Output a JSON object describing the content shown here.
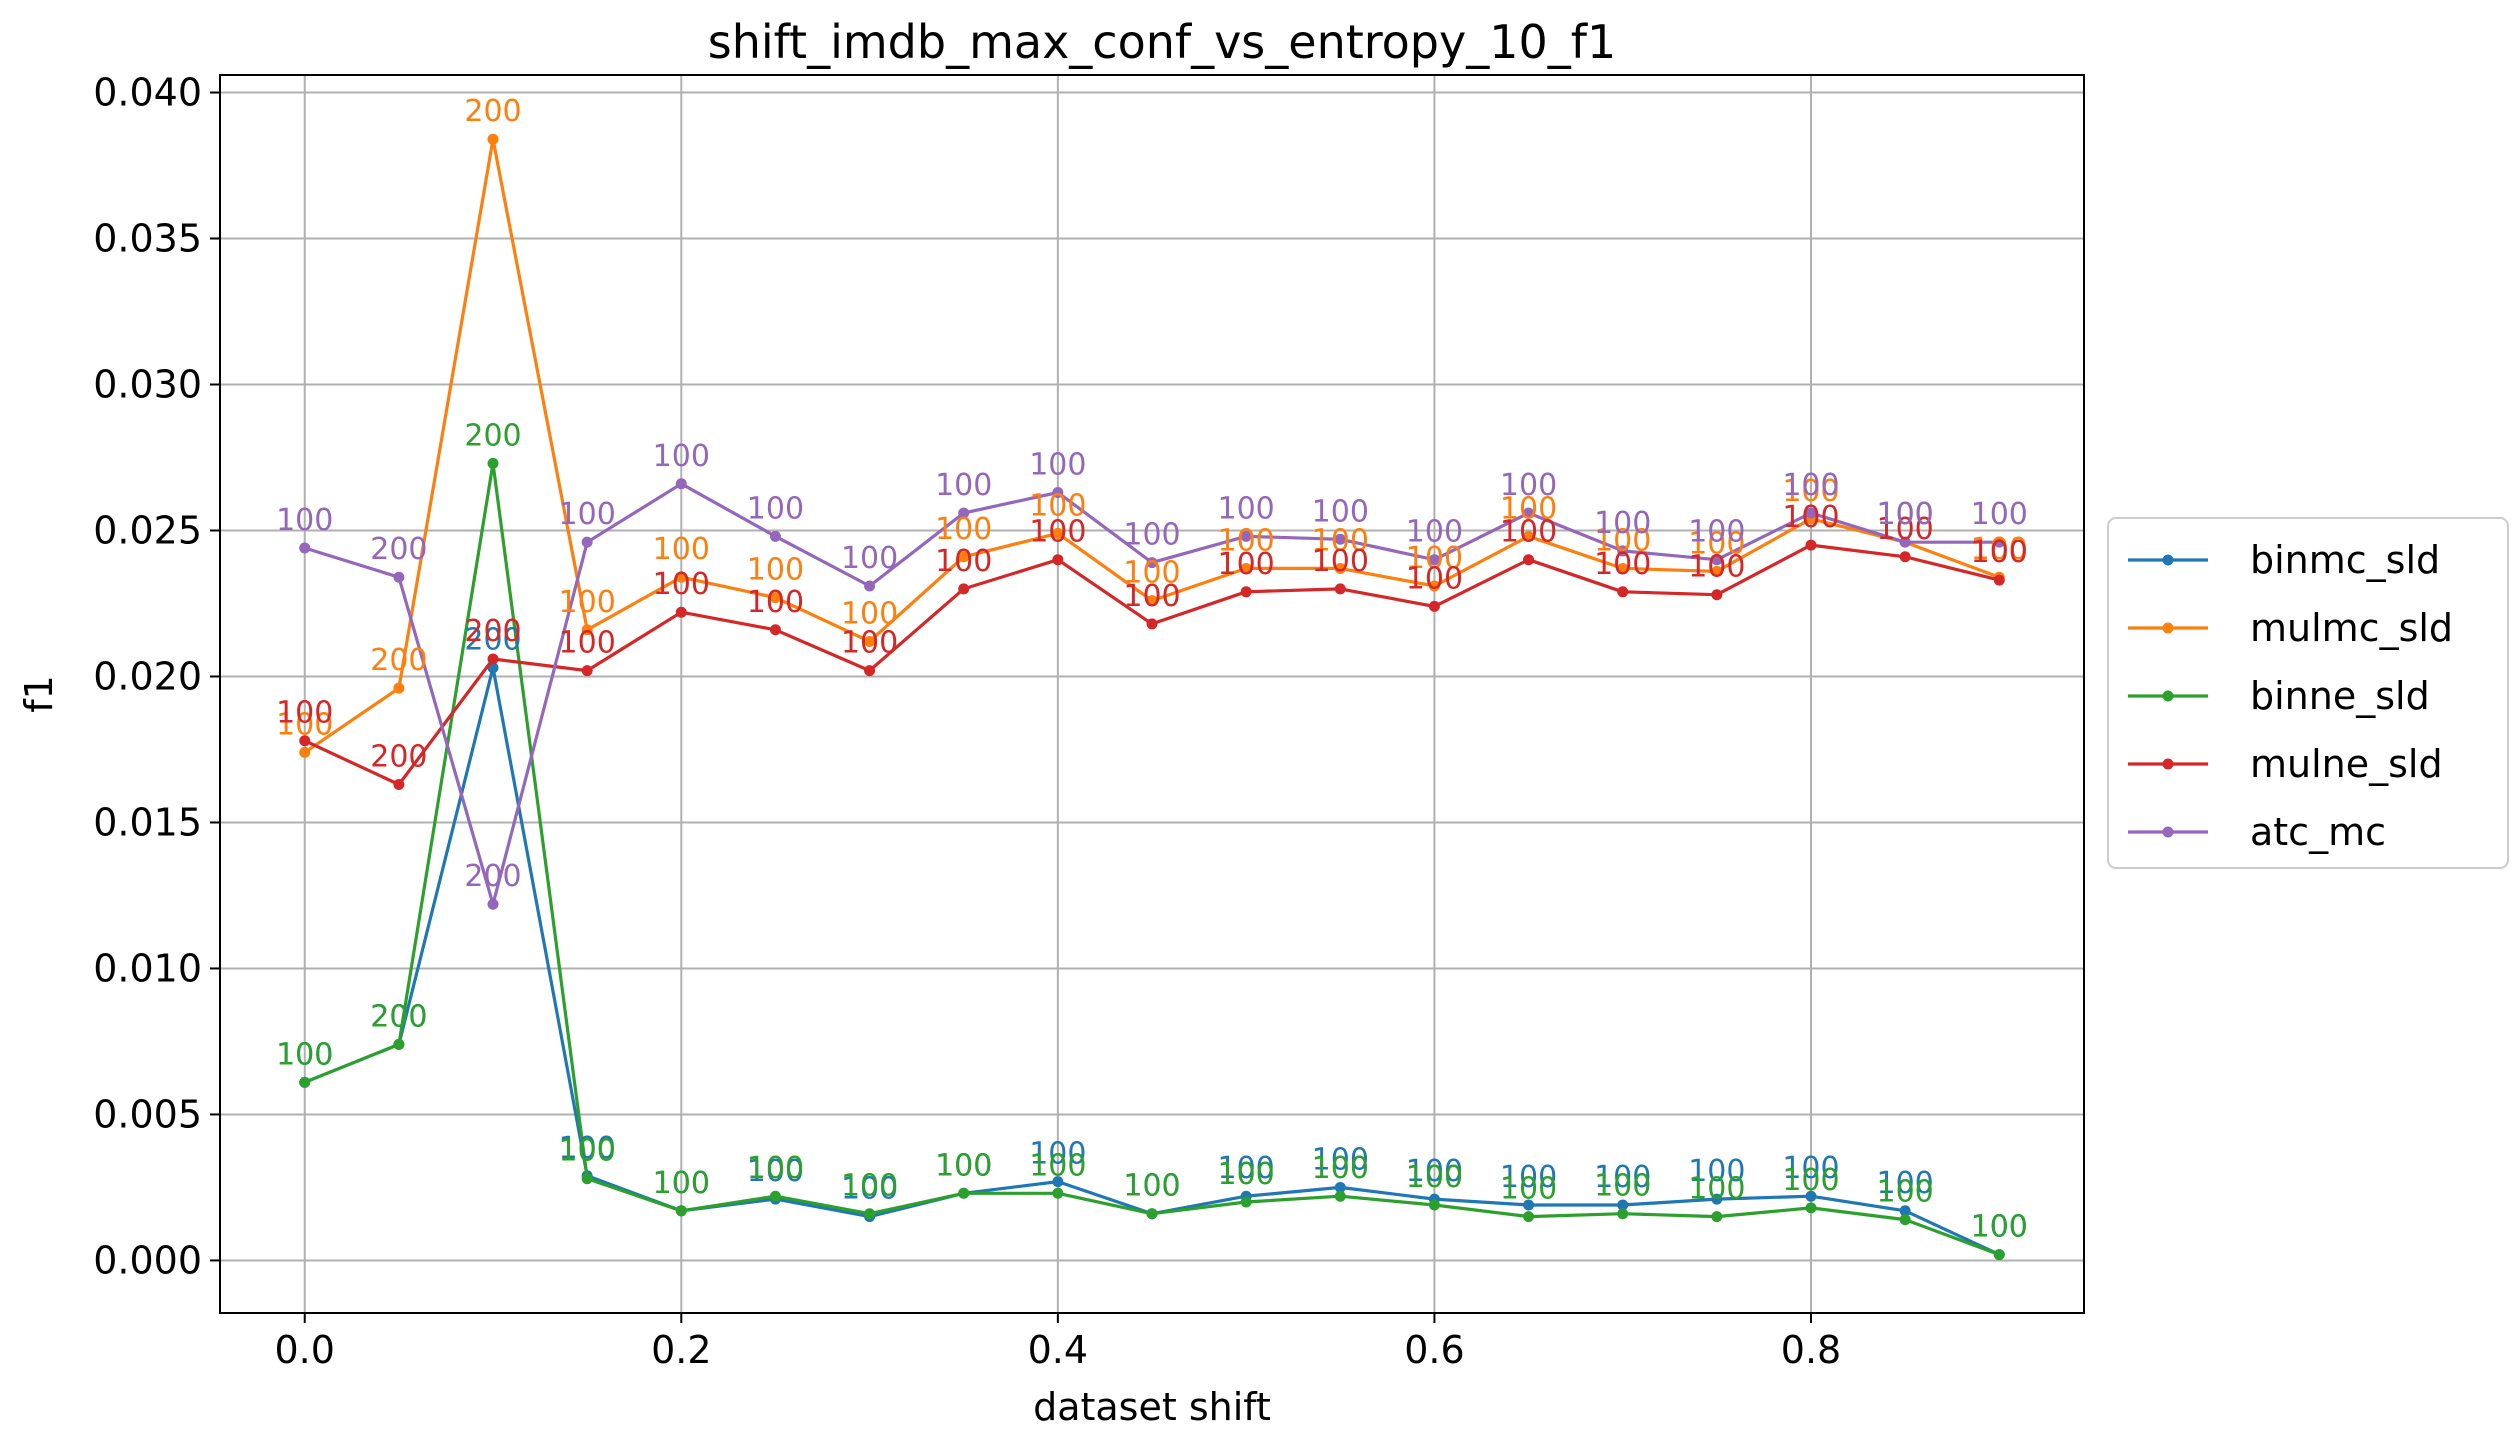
{
  "chart_data": {
    "type": "line",
    "title": "shift_imdb_max_conf_vs_entropy_10_f1",
    "xlabel": "dataset shift",
    "ylabel": "f1",
    "xlim": [
      -0.045,
      0.945
    ],
    "ylim": [
      -0.0018,
      0.0406
    ],
    "xticks": [
      0.0,
      0.2,
      0.4,
      0.6,
      0.8
    ],
    "xtick_labels": [
      "0.0",
      "0.2",
      "0.4",
      "0.6",
      "0.8"
    ],
    "yticks": [
      0.0,
      0.005,
      0.01,
      0.015,
      0.02,
      0.025,
      0.03,
      0.035,
      0.04
    ],
    "ytick_labels": [
      "0.000",
      "0.005",
      "0.010",
      "0.015",
      "0.020",
      "0.025",
      "0.030",
      "0.035",
      "0.040"
    ],
    "grid": true,
    "legend_position": "outside-right",
    "x": [
      0.0,
      0.05,
      0.1,
      0.15,
      0.2,
      0.25,
      0.3,
      0.35,
      0.4,
      0.45,
      0.5,
      0.55,
      0.6,
      0.65,
      0.7,
      0.75,
      0.8,
      0.85,
      0.9
    ],
    "series": [
      {
        "name": "binmc_sld",
        "color": "#1f77b4",
        "values": [
          0.0061,
          0.0074,
          0.0203,
          0.0029,
          0.0017,
          0.0021,
          0.0015,
          0.0023,
          0.0027,
          0.0016,
          0.0022,
          0.0025,
          0.0021,
          0.0019,
          0.0019,
          0.0021,
          0.0022,
          0.0017,
          0.0002
        ],
        "point_labels": [
          "100",
          "200",
          "200",
          "100",
          "100",
          "100",
          "100",
          "100",
          "100",
          "100",
          "100",
          "100",
          "100",
          "100",
          "100",
          "100",
          "100",
          "100",
          "100"
        ]
      },
      {
        "name": "mulmc_sld",
        "color": "#ff7f0e",
        "values": [
          0.0174,
          0.0196,
          0.0384,
          0.0216,
          0.0234,
          0.0227,
          0.0212,
          0.0241,
          0.0249,
          0.0226,
          0.0237,
          0.0237,
          0.0231,
          0.0248,
          0.0237,
          0.0236,
          0.0254,
          0.0246,
          0.0234
        ],
        "point_labels": [
          "100",
          "200",
          "200",
          "100",
          "100",
          "100",
          "100",
          "100",
          "100",
          "100",
          "100",
          "100",
          "100",
          "100",
          "100",
          "100",
          "100",
          "100",
          "100"
        ]
      },
      {
        "name": "binne_sld",
        "color": "#2ca02c",
        "values": [
          0.0061,
          0.0074,
          0.0273,
          0.0028,
          0.0017,
          0.0022,
          0.0016,
          0.0023,
          0.0023,
          0.0016,
          0.002,
          0.0022,
          0.0019,
          0.0015,
          0.0016,
          0.0015,
          0.0018,
          0.0014,
          0.0002
        ],
        "point_labels": [
          "100",
          "200",
          "200",
          "100",
          "100",
          "100",
          "100",
          "100",
          "100",
          "100",
          "100",
          "100",
          "100",
          "100",
          "100",
          "100",
          "100",
          "100",
          "100"
        ]
      },
      {
        "name": "mulne_sld",
        "color": "#d62728",
        "values": [
          0.0178,
          0.0163,
          0.0206,
          0.0202,
          0.0222,
          0.0216,
          0.0202,
          0.023,
          0.024,
          0.0218,
          0.0229,
          0.023,
          0.0224,
          0.024,
          0.0229,
          0.0228,
          0.0245,
          0.0241,
          0.0233
        ],
        "point_labels": [
          "100",
          "200",
          "200",
          "100",
          "100",
          "100",
          "100",
          "100",
          "100",
          "100",
          "100",
          "100",
          "100",
          "100",
          "100",
          "100",
          "100",
          "100",
          "100"
        ]
      },
      {
        "name": "atc_mc",
        "color": "#9467bd",
        "values": [
          0.0244,
          0.0234,
          0.0122,
          0.0246,
          0.0266,
          0.0248,
          0.0231,
          0.0256,
          0.0263,
          0.0239,
          0.0248,
          0.0247,
          0.024,
          0.0256,
          0.0243,
          0.024,
          0.0256,
          0.0246,
          0.0246
        ],
        "point_labels": [
          "100",
          "200",
          "200",
          "100",
          "100",
          "100",
          "100",
          "100",
          "100",
          "100",
          "100",
          "100",
          "100",
          "100",
          "100",
          "100",
          "100",
          "100",
          "100"
        ]
      }
    ]
  }
}
